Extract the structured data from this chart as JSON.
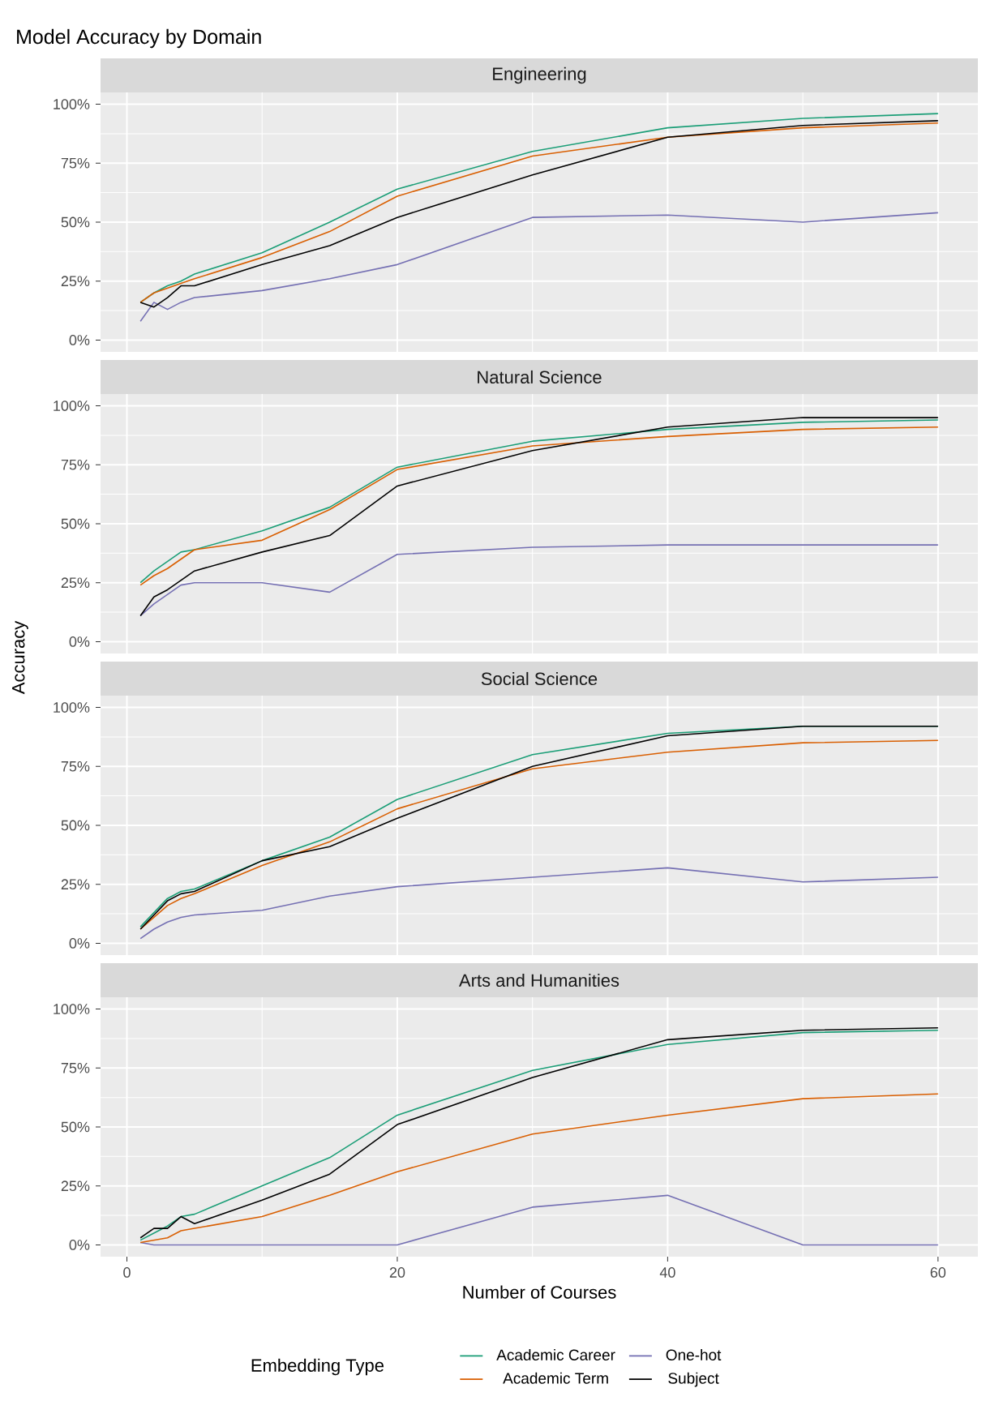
{
  "chart_data": [
    {
      "type": "line",
      "title": "Model Accuracy by Domain",
      "subtitle": "Engineering",
      "x": [
        1,
        2,
        3,
        4,
        5,
        10,
        15,
        20,
        30,
        40,
        50,
        60
      ],
      "xlim": [
        -1.95,
        62.95
      ],
      "xticks": [
        0,
        20,
        40,
        60
      ],
      "ylim": [
        -5,
        105
      ],
      "yticks": [
        {
          "value": 0,
          "label": "0%"
        },
        {
          "value": 25,
          "label": "25%"
        },
        {
          "value": 50,
          "label": "50%"
        },
        {
          "value": 75,
          "label": "75%"
        },
        {
          "value": 100,
          "label": "100%"
        }
      ],
      "grid": true,
      "tick_labels": "y",
      "marker": "none",
      "series": [
        {
          "color": "#1b9e77",
          "values": [
            16,
            20,
            23,
            25,
            28,
            37,
            50,
            64,
            80,
            90,
            94,
            96
          ]
        },
        {
          "color": "#7570b3",
          "values": [
            8,
            16,
            13,
            16,
            18,
            21,
            26,
            32,
            52,
            53,
            50,
            54
          ]
        },
        {
          "color": "#d95f02",
          "values": [
            16,
            20,
            22,
            24,
            26,
            35,
            46,
            61,
            78,
            86,
            90,
            92
          ]
        },
        {
          "color": "#000000",
          "values": [
            16,
            14,
            18,
            23,
            23,
            32,
            40,
            52,
            70,
            86,
            91,
            93
          ]
        }
      ]
    },
    {
      "type": "line",
      "subtitle": "Natural Science",
      "ylabel": "Accuracy",
      "x": [
        1,
        2,
        3,
        4,
        5,
        10,
        15,
        20,
        30,
        40,
        50,
        60
      ],
      "xlim": [
        -1.95,
        62.95
      ],
      "xticks": [
        0,
        20,
        40,
        60
      ],
      "ylim": [
        -5,
        105
      ],
      "yticks": [
        {
          "value": 0,
          "label": "0%"
        },
        {
          "value": 25,
          "label": "25%"
        },
        {
          "value": 50,
          "label": "50%"
        },
        {
          "value": 75,
          "label": "75%"
        },
        {
          "value": 100,
          "label": "100%"
        }
      ],
      "grid": true,
      "tick_labels": "y",
      "marker": "none",
      "series": [
        {
          "color": "#1b9e77",
          "values": [
            25,
            30,
            34,
            38,
            39,
            47,
            57,
            74,
            85,
            90,
            93,
            94
          ]
        },
        {
          "color": "#7570b3",
          "values": [
            11,
            16,
            20,
            24,
            25,
            25,
            21,
            37,
            40,
            41,
            41,
            41
          ]
        },
        {
          "color": "#d95f02",
          "values": [
            24,
            28,
            31,
            35,
            39,
            43,
            56,
            73,
            83,
            87,
            90,
            91
          ]
        },
        {
          "color": "#000000",
          "values": [
            11,
            19,
            22,
            26,
            30,
            38,
            45,
            66,
            81,
            91,
            95,
            95
          ]
        }
      ]
    },
    {
      "type": "line",
      "subtitle": "Social Science",
      "x": [
        1,
        2,
        3,
        4,
        5,
        10,
        15,
        20,
        30,
        40,
        50,
        60
      ],
      "xlim": [
        -1.95,
        62.95
      ],
      "xticks": [
        0,
        20,
        40,
        60
      ],
      "ylim": [
        -5,
        105
      ],
      "yticks": [
        {
          "value": 0,
          "label": "0%"
        },
        {
          "value": 25,
          "label": "25%"
        },
        {
          "value": 50,
          "label": "50%"
        },
        {
          "value": 75,
          "label": "75%"
        },
        {
          "value": 100,
          "label": "100%"
        }
      ],
      "grid": true,
      "tick_labels": "y",
      "marker": "none",
      "series": [
        {
          "color": "#1b9e77",
          "values": [
            7,
            13,
            19,
            22,
            23,
            35,
            45,
            61,
            80,
            89,
            92,
            92
          ]
        },
        {
          "color": "#7570b3",
          "values": [
            2,
            6,
            9,
            11,
            12,
            14,
            20,
            24,
            28,
            32,
            26,
            28
          ]
        },
        {
          "color": "#d95f02",
          "values": [
            6,
            11,
            16,
            19,
            21,
            33,
            43,
            57,
            74,
            81,
            85,
            86
          ]
        },
        {
          "color": "#000000",
          "values": [
            6,
            12,
            18,
            21,
            22,
            35,
            41,
            53,
            75,
            88,
            92,
            92
          ]
        }
      ]
    },
    {
      "type": "line",
      "subtitle": "Arts and Humanities",
      "xlabel": "Number of Courses",
      "legend_title": "Embedding Type",
      "legend": "bottom",
      "x": [
        1,
        2,
        3,
        4,
        5,
        10,
        15,
        20,
        30,
        40,
        50,
        60
      ],
      "xlim": [
        -1.95,
        62.95
      ],
      "xticks": [
        0,
        20,
        40,
        60
      ],
      "ylim": [
        -5,
        105
      ],
      "yticks": [
        {
          "value": 0,
          "label": "0%"
        },
        {
          "value": 25,
          "label": "25%"
        },
        {
          "value": 50,
          "label": "50%"
        },
        {
          "value": 75,
          "label": "75%"
        },
        {
          "value": 100,
          "label": "100%"
        }
      ],
      "grid": true,
      "marker": "none",
      "series": [
        {
          "name": "Academic Career",
          "color": "#1b9e77",
          "values": [
            2,
            5,
            8,
            12,
            13,
            25,
            37,
            55,
            74,
            85,
            90,
            91
          ]
        },
        {
          "name": "One-hot",
          "color": "#7570b3",
          "values": [
            1,
            0,
            0,
            0,
            0,
            0,
            0,
            0,
            16,
            21,
            0,
            0
          ]
        },
        {
          "name": "Academic Term",
          "color": "#d95f02",
          "values": [
            1,
            2,
            3,
            6,
            7,
            12,
            21,
            31,
            47,
            55,
            62,
            64
          ]
        },
        {
          "name": "Subject",
          "color": "#000000",
          "values": [
            3,
            7,
            7,
            12,
            9,
            19,
            30,
            51,
            71,
            87,
            91,
            92
          ]
        }
      ]
    }
  ]
}
